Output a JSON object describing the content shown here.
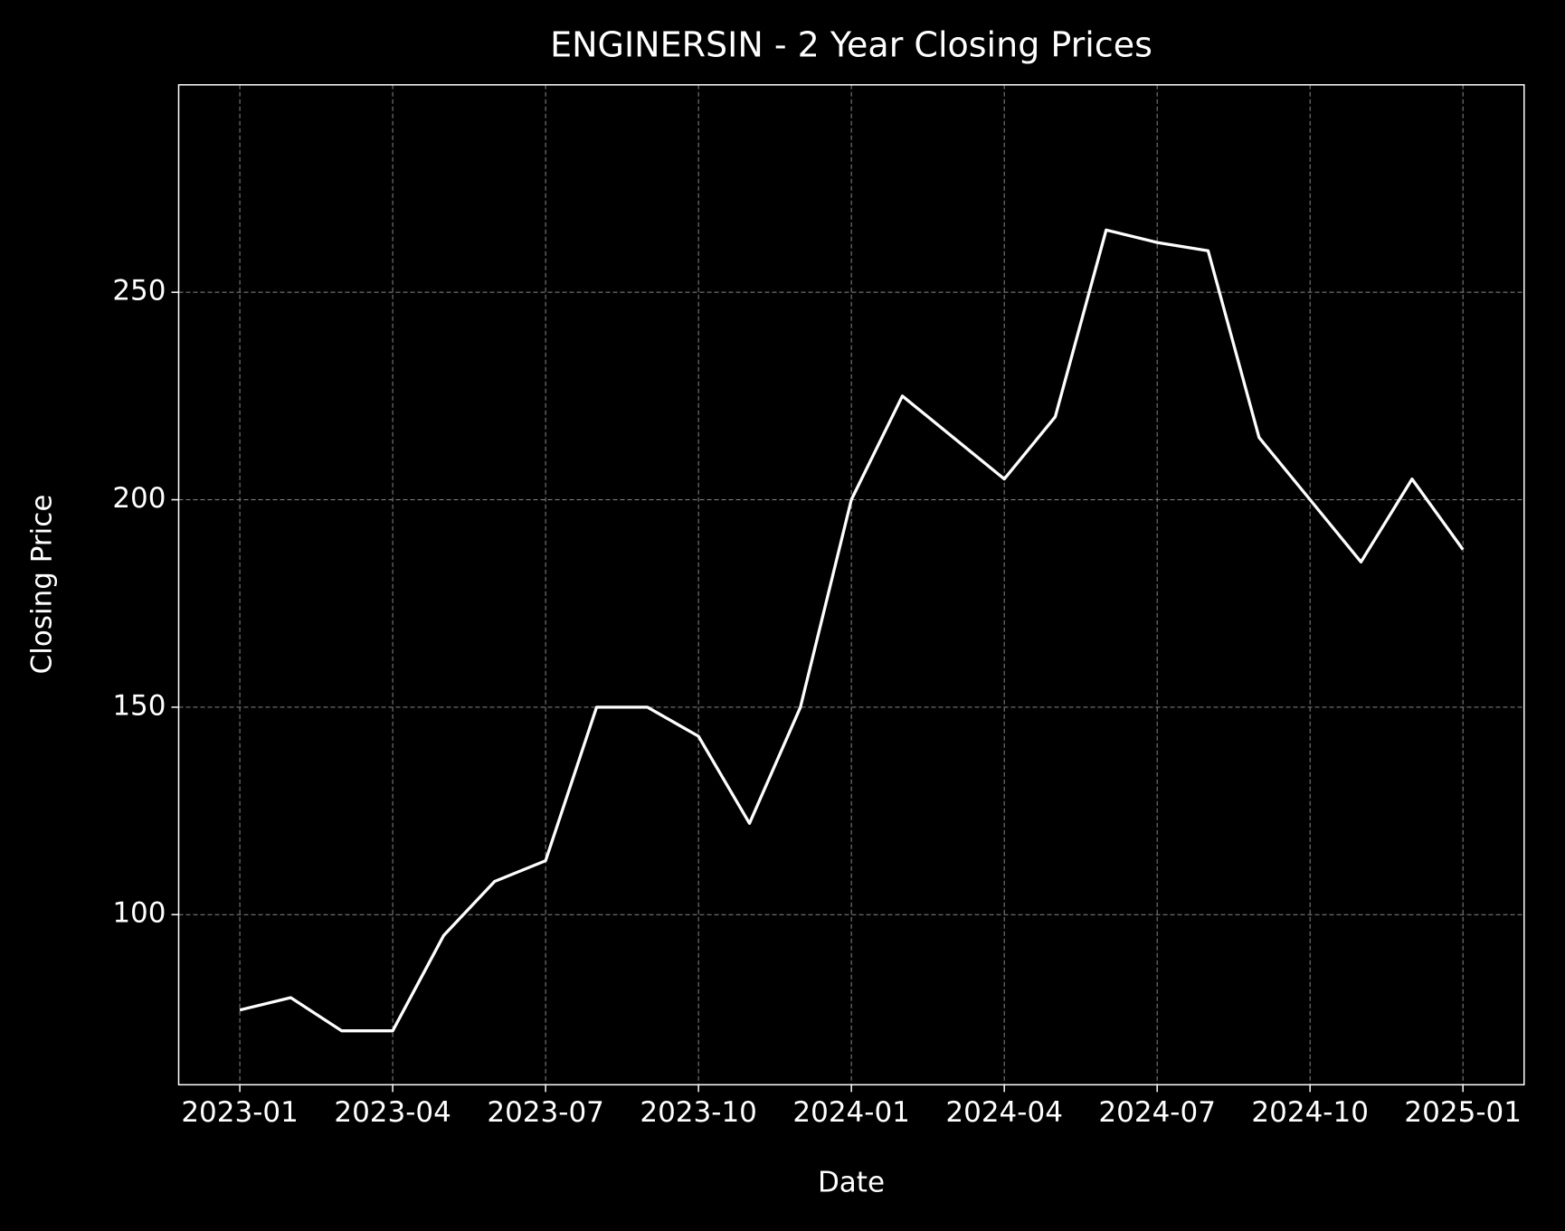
{
  "chart_data": {
    "type": "line",
    "title": "ENGINERSIN - 2 Year Closing Prices",
    "xlabel": "Date",
    "ylabel": "Closing Price",
    "x": [
      "2023-01",
      "2023-02",
      "2023-03",
      "2023-04",
      "2023-05",
      "2023-06",
      "2023-07",
      "2023-08",
      "2023-09",
      "2023-10",
      "2023-11",
      "2023-12",
      "2024-01",
      "2024-02",
      "2024-03",
      "2024-04",
      "2024-05",
      "2024-06",
      "2024-07",
      "2024-08",
      "2024-09",
      "2024-10",
      "2024-11",
      "2024-12",
      "2025-01"
    ],
    "values": [
      77,
      80,
      72,
      72,
      95,
      108,
      113,
      150,
      150,
      143,
      122,
      150,
      200,
      225,
      215,
      205,
      220,
      265,
      262,
      260,
      215,
      200,
      185,
      205,
      188
    ],
    "color": "#ffffff",
    "ylim": [
      59,
      300
    ],
    "yticks": [
      100,
      150,
      200,
      250
    ],
    "xticks": [
      "2023-01",
      "2023-04",
      "2023-07",
      "2023-10",
      "2024-01",
      "2024-04",
      "2024-07",
      "2024-10",
      "2025-01"
    ],
    "grid": true
  }
}
